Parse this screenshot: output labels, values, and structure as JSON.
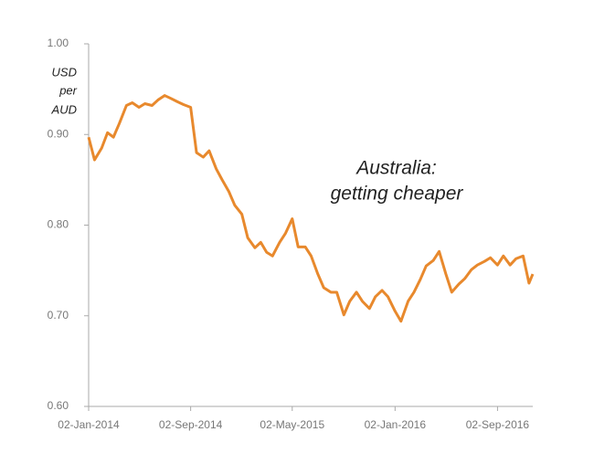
{
  "chart_data": {
    "type": "line",
    "ylabel": [
      "USD",
      "per",
      "AUD"
    ],
    "annotation": [
      "Australia:",
      "getting cheaper"
    ],
    "xlim": [
      "2014-01-02",
      "2016-11-25"
    ],
    "xticks": [
      {
        "value": "2014-01-02",
        "label": "02-Jan-2014"
      },
      {
        "value": "2014-09-02",
        "label": "02-Sep-2014"
      },
      {
        "value": "2015-05-02",
        "label": "02-May-2015"
      },
      {
        "value": "2016-01-02",
        "label": "02-Jan-2016"
      },
      {
        "value": "2016-09-02",
        "label": "02-Sep-2016"
      }
    ],
    "ylim": [
      0.6,
      1.0
    ],
    "yticks": [
      {
        "value": 0.6,
        "label": "0.60"
      },
      {
        "value": 0.7,
        "label": "0.70"
      },
      {
        "value": 0.8,
        "label": "0.80"
      },
      {
        "value": 0.9,
        "label": "0.90"
      },
      {
        "value": 1.0,
        "label": "1.00"
      }
    ],
    "grid": false,
    "series": [
      {
        "name": "USD per AUD",
        "color": "#e8892d",
        "x": [
          "2014-01-02",
          "2014-01-16",
          "2014-02-02",
          "2014-02-16",
          "2014-03-02",
          "2014-03-16",
          "2014-04-02",
          "2014-04-16",
          "2014-05-02",
          "2014-05-16",
          "2014-06-02",
          "2014-06-16",
          "2014-07-02",
          "2014-07-16",
          "2014-08-02",
          "2014-08-16",
          "2014-09-02",
          "2014-09-16",
          "2014-10-02",
          "2014-10-16",
          "2014-11-02",
          "2014-11-16",
          "2014-12-02",
          "2014-12-16",
          "2015-01-02",
          "2015-01-16",
          "2015-02-02",
          "2015-02-16",
          "2015-03-02",
          "2015-03-16",
          "2015-04-02",
          "2015-04-16",
          "2015-05-02",
          "2015-05-16",
          "2015-06-02",
          "2015-06-16",
          "2015-07-02",
          "2015-07-16",
          "2015-08-02",
          "2015-08-16",
          "2015-09-02",
          "2015-09-16",
          "2015-10-02",
          "2015-10-16",
          "2015-11-02",
          "2015-11-16",
          "2015-12-02",
          "2015-12-16",
          "2016-01-02",
          "2016-01-16",
          "2016-02-02",
          "2016-02-16",
          "2016-03-02",
          "2016-03-16",
          "2016-04-02",
          "2016-04-16",
          "2016-05-02",
          "2016-05-16",
          "2016-06-02",
          "2016-06-16",
          "2016-07-02",
          "2016-07-16",
          "2016-08-02",
          "2016-08-16",
          "2016-09-02",
          "2016-09-16",
          "2016-10-02",
          "2016-10-16",
          "2016-11-02",
          "2016-11-16",
          "2016-11-25"
        ],
        "values": [
          0.897,
          0.872,
          0.885,
          0.902,
          0.897,
          0.912,
          0.932,
          0.935,
          0.93,
          0.934,
          0.932,
          0.938,
          0.943,
          0.94,
          0.936,
          0.933,
          0.93,
          0.88,
          0.875,
          0.882,
          0.862,
          0.85,
          0.837,
          0.822,
          0.812,
          0.786,
          0.775,
          0.781,
          0.77,
          0.766,
          0.781,
          0.791,
          0.807,
          0.776,
          0.776,
          0.766,
          0.746,
          0.731,
          0.726,
          0.726,
          0.701,
          0.716,
          0.726,
          0.716,
          0.708,
          0.721,
          0.728,
          0.721,
          0.705,
          0.694,
          0.716,
          0.726,
          0.74,
          0.755,
          0.761,
          0.771,
          0.746,
          0.726,
          0.735,
          0.741,
          0.751,
          0.756,
          0.76,
          0.764,
          0.756,
          0.766,
          0.756,
          0.763,
          0.766,
          0.736,
          0.746
        ]
      }
    ]
  }
}
